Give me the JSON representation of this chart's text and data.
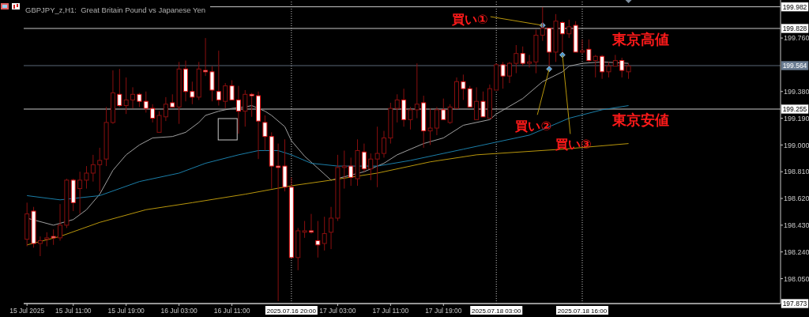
{
  "chart_data": {
    "type": "candlestick",
    "title": "GBPJPY_z,H1:  Great Britain Pound vs Japanese Yen",
    "x": [
      "2025-07-15T04:00",
      "2025-07-15T05:00",
      "2025-07-15T06:00",
      "2025-07-15T07:00",
      "2025-07-15T08:00",
      "2025-07-15T09:00",
      "2025-07-15T10:00",
      "2025-07-15T11:00",
      "2025-07-15T12:00",
      "2025-07-15T13:00",
      "2025-07-15T14:00",
      "2025-07-15T15:00",
      "2025-07-15T16:00",
      "2025-07-15T17:00",
      "2025-07-15T18:00",
      "2025-07-15T19:00",
      "2025-07-15T20:00",
      "2025-07-15T21:00",
      "2025-07-15T22:00",
      "2025-07-15T23:00",
      "2025-07-16T00:00",
      "2025-07-16T01:00",
      "2025-07-16T02:00",
      "2025-07-16T03:00",
      "2025-07-16T04:00",
      "2025-07-16T05:00",
      "2025-07-16T06:00",
      "2025-07-16T07:00",
      "2025-07-16T08:00",
      "2025-07-16T09:00",
      "2025-07-16T10:00",
      "2025-07-16T11:00",
      "2025-07-16T12:00",
      "2025-07-16T13:00",
      "2025-07-16T14:00",
      "2025-07-16T15:00",
      "2025-07-16T16:00",
      "2025-07-16T17:00",
      "2025-07-16T18:00",
      "2025-07-16T19:00",
      "2025-07-16T20:00",
      "2025-07-16T21:00",
      "2025-07-16T22:00",
      "2025-07-16T23:00",
      "2025-07-17T00:00",
      "2025-07-17T01:00",
      "2025-07-17T02:00",
      "2025-07-17T03:00",
      "2025-07-17T04:00",
      "2025-07-17T05:00",
      "2025-07-17T06:00",
      "2025-07-17T07:00",
      "2025-07-17T08:00",
      "2025-07-17T09:00",
      "2025-07-17T10:00",
      "2025-07-17T11:00",
      "2025-07-17T12:00",
      "2025-07-17T13:00",
      "2025-07-17T14:00",
      "2025-07-17T15:00",
      "2025-07-17T16:00",
      "2025-07-17T17:00",
      "2025-07-17T18:00",
      "2025-07-17T19:00",
      "2025-07-17T20:00",
      "2025-07-17T21:00",
      "2025-07-17T22:00",
      "2025-07-17T23:00",
      "2025-07-18T00:00",
      "2025-07-18T01:00",
      "2025-07-18T02:00",
      "2025-07-18T03:00",
      "2025-07-18T04:00",
      "2025-07-18T05:00",
      "2025-07-18T06:00",
      "2025-07-18T07:00",
      "2025-07-18T08:00",
      "2025-07-18T09:00",
      "2025-07-18T10:00",
      "2025-07-18T11:00",
      "2025-07-18T12:00",
      "2025-07-18T13:00",
      "2025-07-18T14:00",
      "2025-07-18T15:00",
      "2025-07-18T16:00",
      "2025-07-18T17:00",
      "2025-07-18T18:00",
      "2025-07-18T19:00",
      "2025-07-18T20:00",
      "2025-07-18T21:00",
      "2025-07-18T22:00",
      "2025-07-18T23:00"
    ],
    "ohlc": [
      [
        198.33,
        198.59,
        198.28,
        198.51
      ],
      [
        198.53,
        198.56,
        198.27,
        198.3
      ],
      [
        198.3,
        198.35,
        198.21,
        198.32
      ],
      [
        198.33,
        198.38,
        198.28,
        198.34
      ],
      [
        198.35,
        198.4,
        198.29,
        198.34
      ],
      [
        198.34,
        198.58,
        198.32,
        198.43
      ],
      [
        198.43,
        198.76,
        198.41,
        198.75
      ],
      [
        198.75,
        198.76,
        198.53,
        198.59
      ],
      [
        198.69,
        198.81,
        198.51,
        198.75
      ],
      [
        198.75,
        198.85,
        198.69,
        198.8
      ],
      [
        198.8,
        198.93,
        198.74,
        198.86
      ],
      [
        198.86,
        198.98,
        198.67,
        198.89
      ],
      [
        198.9,
        199.27,
        198.85,
        199.16
      ],
      [
        199.16,
        199.53,
        199.15,
        199.37
      ],
      [
        199.36,
        199.54,
        199.27,
        199.28
      ],
      [
        199.28,
        199.48,
        199.22,
        199.32
      ],
      [
        199.32,
        199.41,
        199.26,
        199.36
      ],
      [
        199.36,
        199.37,
        199.27,
        199.31
      ],
      [
        199.31,
        199.38,
        199.23,
        199.26
      ],
      [
        199.26,
        199.29,
        199.16,
        199.19
      ],
      [
        199.09,
        199.24,
        199.09,
        199.21
      ],
      [
        199.2,
        199.34,
        199.17,
        199.29
      ],
      [
        199.3,
        199.36,
        199.27,
        199.27
      ],
      [
        199.27,
        199.59,
        199.15,
        199.54
      ],
      [
        199.54,
        199.6,
        199.31,
        199.38
      ],
      [
        199.38,
        199.45,
        199.29,
        199.34
      ],
      [
        199.34,
        199.59,
        199.32,
        199.54
      ],
      [
        199.53,
        199.76,
        199.49,
        199.52
      ],
      [
        199.52,
        199.56,
        199.31,
        199.39
      ],
      [
        199.38,
        199.67,
        199.28,
        199.32
      ],
      [
        199.31,
        199.44,
        199.26,
        199.42
      ],
      [
        199.42,
        199.46,
        199.32,
        199.32
      ],
      [
        199.32,
        199.42,
        199.08,
        199.24
      ],
      [
        199.24,
        199.39,
        199.13,
        199.36
      ],
      [
        199.36,
        199.37,
        199.2,
        199.35
      ],
      [
        199.35,
        199.38,
        198.9,
        199.17
      ],
      [
        199.16,
        199.21,
        198.96,
        199.06
      ],
      [
        199.06,
        199.09,
        198.69,
        198.85
      ],
      [
        198.85,
        199.01,
        197.89,
        198.84
      ],
      [
        198.85,
        199.04,
        198.67,
        198.7
      ],
      [
        198.7,
        198.77,
        198.2,
        198.2
      ],
      [
        198.2,
        198.41,
        198.11,
        198.39
      ],
      [
        198.38,
        198.46,
        198.34,
        198.39
      ],
      [
        198.39,
        198.51,
        198.37,
        198.38
      ],
      [
        198.32,
        198.46,
        198.2,
        198.29
      ],
      [
        198.3,
        198.49,
        198.25,
        198.37
      ],
      [
        198.38,
        198.56,
        198.26,
        198.48
      ],
      [
        198.48,
        198.93,
        198.46,
        198.84
      ],
      [
        198.84,
        198.96,
        198.69,
        198.85
      ],
      [
        198.85,
        198.91,
        198.71,
        198.77
      ],
      [
        198.76,
        199.04,
        198.71,
        198.96
      ],
      [
        198.95,
        199.01,
        198.81,
        198.83
      ],
      [
        198.83,
        198.94,
        198.75,
        198.9
      ],
      [
        198.9,
        199.13,
        198.7,
        198.94
      ],
      [
        198.94,
        199.1,
        198.91,
        199.05
      ],
      [
        199.05,
        199.3,
        199.01,
        199.26
      ],
      [
        199.26,
        199.36,
        199.16,
        199.32
      ],
      [
        199.32,
        199.4,
        199.13,
        199.18
      ],
      [
        199.18,
        199.27,
        199.11,
        199.25
      ],
      [
        199.25,
        199.58,
        199.19,
        199.29
      ],
      [
        199.3,
        199.35,
        198.98,
        199.1
      ],
      [
        199.1,
        199.26,
        199.0,
        199.12
      ],
      [
        199.12,
        199.27,
        199.07,
        199.25
      ],
      [
        199.25,
        199.33,
        199.18,
        199.18
      ],
      [
        199.16,
        199.29,
        199.15,
        199.27
      ],
      [
        199.26,
        199.48,
        199.26,
        199.45
      ],
      [
        199.45,
        199.5,
        199.32,
        199.4
      ],
      [
        199.4,
        199.42,
        199.27,
        199.27
      ],
      [
        199.18,
        199.41,
        199.18,
        199.31
      ],
      [
        199.31,
        199.38,
        199.2,
        199.2
      ],
      [
        199.19,
        199.43,
        199.19,
        199.4
      ],
      [
        199.39,
        199.58,
        199.39,
        199.57
      ],
      [
        199.57,
        199.59,
        199.4,
        199.49
      ],
      [
        199.49,
        199.59,
        199.44,
        199.58
      ],
      [
        199.58,
        199.71,
        199.51,
        199.65
      ],
      [
        199.65,
        199.7,
        199.56,
        199.58
      ],
      [
        199.58,
        199.64,
        199.55,
        199.59
      ],
      [
        199.59,
        199.82,
        199.51,
        199.78
      ],
      [
        199.78,
        199.98,
        199.74,
        199.83
      ],
      [
        199.83,
        199.83,
        199.56,
        199.66
      ],
      [
        199.66,
        199.93,
        199.59,
        199.88
      ],
      [
        199.87,
        199.88,
        199.66,
        199.79
      ],
      [
        199.79,
        199.89,
        199.76,
        199.84
      ],
      [
        199.85,
        199.88,
        199.66,
        199.66
      ],
      [
        199.66,
        199.75,
        199.65,
        199.67
      ],
      [
        199.68,
        199.75,
        199.59,
        199.6
      ],
      [
        199.6,
        199.64,
        199.48,
        199.63
      ],
      [
        199.63,
        199.64,
        199.47,
        199.52
      ],
      [
        199.52,
        199.59,
        199.48,
        199.56
      ],
      [
        199.56,
        199.64,
        199.56,
        199.6
      ],
      [
        199.6,
        199.62,
        199.48,
        199.53
      ],
      [
        199.52,
        199.58,
        199.47,
        199.56
      ]
    ],
    "series": [
      {
        "type": "line",
        "color": "#a0a0a0",
        "x": [
          "2025-07-15T04:00",
          "2025-07-15T08:00",
          "2025-07-15T11:00",
          "2025-07-15T13:00",
          "2025-07-15T15:00",
          "2025-07-15T17:00",
          "2025-07-15T19:00",
          "2025-07-15T21:00",
          "2025-07-15T23:00",
          "2025-07-16T02:00",
          "2025-07-16T04:00",
          "2025-07-16T06:00",
          "2025-07-16T07:00",
          "2025-07-16T09:00",
          "2025-07-16T11:00",
          "2025-07-16T13:00",
          "2025-07-16T14:00",
          "2025-07-16T16:00",
          "2025-07-16T17:00",
          "2025-07-16T19:00",
          "2025-07-16T20:00",
          "2025-07-16T22:00",
          "2025-07-17T02:00",
          "2025-07-17T07:00",
          "2025-07-17T10:00",
          "2025-07-17T12:00",
          "2025-07-17T16:00",
          "2025-07-17T19:00",
          "2025-07-17T22:00",
          "2025-07-18T02:00",
          "2025-07-18T03:00",
          "2025-07-18T07:00",
          "2025-07-18T10:00",
          "2025-07-18T13:00",
          "2025-07-18T14:00",
          "2025-07-18T16:00",
          "2025-07-18T19:00",
          "2025-07-18T23:00"
        ],
        "values": [
          198.48,
          198.43,
          198.47,
          198.54,
          198.65,
          198.82,
          198.93,
          199.0,
          199.05,
          199.06,
          199.09,
          199.16,
          199.21,
          199.24,
          199.26,
          199.27,
          199.28,
          199.24,
          199.21,
          199.13,
          199.03,
          198.92,
          198.75,
          198.81,
          198.87,
          198.93,
          199.01,
          199.05,
          199.14,
          199.18,
          199.22,
          199.33,
          199.45,
          199.52,
          199.56,
          199.58,
          199.59,
          199.58
        ]
      },
      {
        "type": "line",
        "color": "#1b7ea8",
        "x": [
          "2025-07-15T04:00",
          "2025-07-15T09:00",
          "2025-07-15T15:00",
          "2025-07-15T21:00",
          "2025-07-16T03:00",
          "2025-07-16T07:00",
          "2025-07-16T12:00",
          "2025-07-16T15:00",
          "2025-07-16T18:00",
          "2025-07-16T20:00",
          "2025-07-16T23:00",
          "2025-07-17T03:00",
          "2025-07-17T09:00",
          "2025-07-17T14:00",
          "2025-07-17T18:00",
          "2025-07-17T22:00",
          "2025-07-18T03:00",
          "2025-07-18T08:00",
          "2025-07-18T14:00",
          "2025-07-18T19:00",
          "2025-07-18T23:00"
        ],
        "values": [
          198.64,
          198.61,
          198.64,
          198.74,
          198.8,
          198.87,
          198.93,
          198.96,
          198.96,
          198.93,
          198.87,
          198.85,
          198.85,
          198.89,
          198.93,
          198.97,
          199.02,
          199.07,
          199.19,
          199.25,
          199.28
        ]
      },
      {
        "type": "line",
        "color": "#b8960c",
        "x": [
          "2025-07-15T04:00",
          "2025-07-15T09:00",
          "2025-07-15T15:00",
          "2025-07-15T22:00",
          "2025-07-16T05:00",
          "2025-07-16T13:00",
          "2025-07-16T20:00",
          "2025-07-17T02:00",
          "2025-07-17T09:00",
          "2025-07-17T17:00",
          "2025-07-18T00:00",
          "2025-07-18T13:00",
          "2025-07-18T23:00"
        ],
        "values": [
          198.29,
          198.35,
          198.45,
          198.54,
          198.59,
          198.65,
          198.71,
          198.75,
          198.8,
          198.88,
          198.93,
          198.97,
          199.01
        ]
      },
      {
        "type": "scatter",
        "color": "#4a9ad8",
        "marker": "diamond",
        "x": [
          "2025-07-18T10:00",
          "2025-07-18T11:00",
          "2025-07-18T13:00"
        ],
        "values": [
          199.85,
          199.54,
          199.64
        ]
      }
    ],
    "xlim": [
      "2025-07-15T03:30",
      "2025-07-19T22:00"
    ],
    "ylim": [
      197.873,
      200.019
    ],
    "xticks": [
      {
        "value": "2025-07-15T04:00",
        "label": "15 Jul 2025"
      },
      {
        "value": "2025-07-15T11:00",
        "label": "15 Jul 11:00"
      },
      {
        "value": "2025-07-15T19:00",
        "label": "15 Jul 19:00"
      },
      {
        "value": "2025-07-16T03:00",
        "label": "16 Jul 03:00"
      },
      {
        "value": "2025-07-16T11:00",
        "label": "16 Jul 11:00"
      },
      {
        "value": "2025-07-17T03:00",
        "label": "17 Jul 03:00"
      },
      {
        "value": "2025-07-17T11:00",
        "label": "17 Jul 11:00"
      },
      {
        "value": "2025-07-17T19:00",
        "label": "17 Jul 19:00"
      }
    ],
    "yticks": [
      {
        "value": 199.76,
        "label": "199.760"
      },
      {
        "value": 199.38,
        "label": "199.380"
      },
      {
        "value": 199.19,
        "label": "199.190"
      },
      {
        "value": 199.0,
        "label": "199.000"
      },
      {
        "value": 198.81,
        "label": "198.810"
      },
      {
        "value": 198.62,
        "label": "198.620"
      },
      {
        "value": 198.43,
        "label": "198.430"
      },
      {
        "value": 198.24,
        "label": "198.240"
      },
      {
        "value": 198.05,
        "label": "198.050"
      }
    ],
    "ref_lines": [
      {
        "axis": "y",
        "value": 199.982,
        "label": "199.982",
        "color": "#c8c8c8",
        "line_style": "solid"
      },
      {
        "axis": "y",
        "value": 199.828,
        "label": "199.828",
        "color": "#c8c8c8",
        "line_style": "solid"
      },
      {
        "axis": "y",
        "value": 199.564,
        "label": "199.564",
        "color": "#5a6878",
        "line_style": "solid"
      },
      {
        "axis": "y",
        "value": 199.255,
        "label": "199.255",
        "color": "#c8c8c8",
        "line_style": "solid"
      },
      {
        "axis": "y",
        "value": 197.873,
        "label": "197.873",
        "color": "#c8c8c8",
        "line_style": "solid"
      },
      {
        "axis": "x",
        "value": "2025-07-16T20:00",
        "label": "2025.07.16 20:00",
        "color": "#c8c8c8",
        "line_style": "dotted"
      },
      {
        "axis": "x",
        "value": "2025-07-18T03:00",
        "label": "2025.07.18 03:00",
        "color": "#c8c8c8",
        "line_style": "dotted"
      },
      {
        "axis": "x",
        "value": "2025-07-18T16:00",
        "label": "2025.07.18 16:00",
        "color": "#c8c8c8",
        "line_style": "dotted"
      }
    ],
    "annotations": [
      {
        "text": "東京高値",
        "y": 199.828
      },
      {
        "text": "東京安値",
        "y": 199.255
      },
      {
        "text": "買い①",
        "x": "2025-07-18T10:00",
        "y": 199.85
      },
      {
        "text": "買い②",
        "x": "2025-07-18T11:00",
        "y": 199.54
      },
      {
        "text": "買い③",
        "x": "2025-07-18T13:00",
        "y": 199.64
      }
    ],
    "grid": false
  }
}
